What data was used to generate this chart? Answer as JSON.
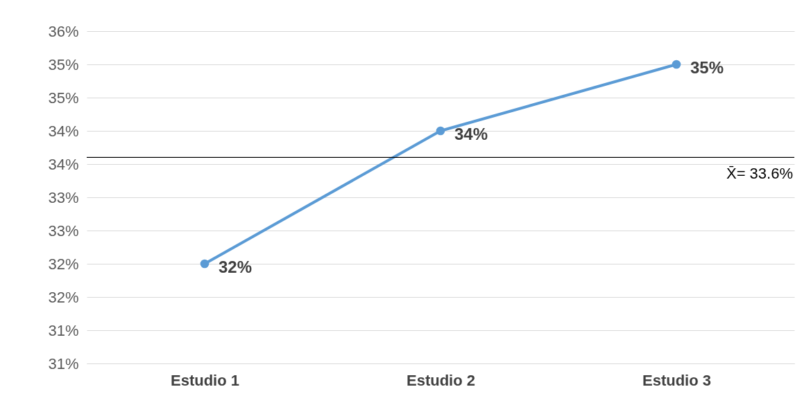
{
  "chart_data": {
    "type": "line",
    "categories": [
      "Estudio 1",
      "Estudio 2",
      "Estudio 3"
    ],
    "series": [
      {
        "color": "#5b9bd5",
        "values": [
          32,
          34,
          35
        ],
        "value_labels": [
          "32%",
          "34%",
          "35%"
        ]
      }
    ],
    "ylim": [
      30.5,
      35.5
    ],
    "yticks": [
      {
        "value": 30.5,
        "label": "31%"
      },
      {
        "value": 31,
        "label": "31%"
      },
      {
        "value": 31.5,
        "label": "32%"
      },
      {
        "value": 32,
        "label": "32%"
      },
      {
        "value": 32.5,
        "label": "33%"
      },
      {
        "value": 33,
        "label": "33%"
      },
      {
        "value": 33.5,
        "label": "34%"
      },
      {
        "value": 34,
        "label": "34%"
      },
      {
        "value": 34.5,
        "label": "35%"
      },
      {
        "value": 35,
        "label": "35%"
      },
      {
        "value": 35.5,
        "label": "36%"
      }
    ],
    "ref_lines": [
      {
        "axis": "y",
        "value": 33.6,
        "label": "X̄= 33.6%",
        "color": "#000000"
      }
    ],
    "grid": "y",
    "marker": "circle"
  }
}
